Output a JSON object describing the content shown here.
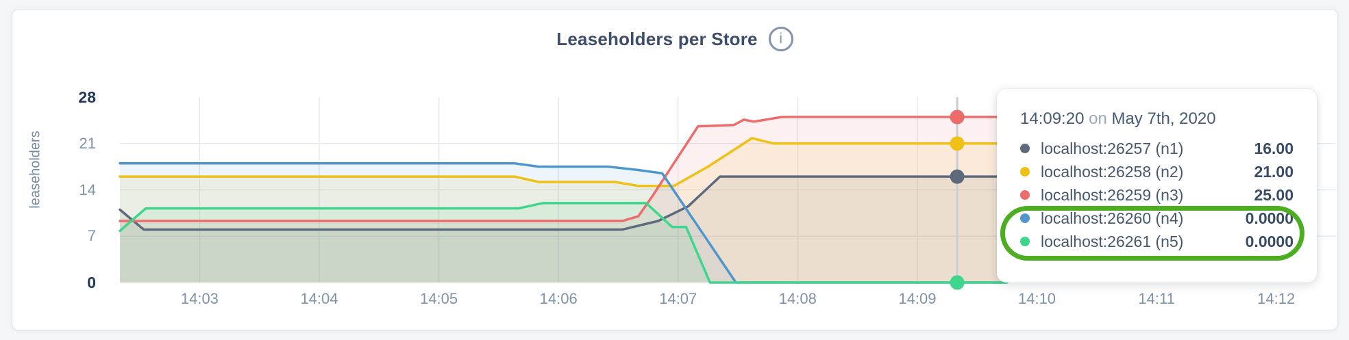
{
  "header": {
    "title": "Leaseholders per Store",
    "info_glyph": "i"
  },
  "tooltip": {
    "time": "14:09:20",
    "connector": "on",
    "date": "May 7th, 2020"
  },
  "annotation": {
    "highlight_color": "#4cae20",
    "wraps_series": [
      "localhost:26260 (n4)",
      "localhost:26261 (n5)"
    ]
  },
  "chart_data": {
    "type": "area",
    "title": "Leaseholders per Store",
    "ylabel": "leaseholders",
    "ylim": [
      0,
      28
    ],
    "x_domain": [
      "14:02:20",
      "14:12:30"
    ],
    "x_ticks": [
      "14:03",
      "14:04",
      "14:05",
      "14:06",
      "14:07",
      "14:08",
      "14:09",
      "14:10",
      "14:11",
      "14:12"
    ],
    "y_ticks": [
      {
        "label": "28",
        "value": 28,
        "emphasis": true
      },
      {
        "label": "21",
        "value": 21,
        "emphasis": false
      },
      {
        "label": "14",
        "value": 14,
        "emphasis": false
      },
      {
        "label": "7",
        "value": 7,
        "emphasis": false
      },
      {
        "label": "0",
        "value": 0,
        "emphasis": true
      }
    ],
    "grid": {
      "on": true,
      "h_values": [
        7,
        14,
        21
      ],
      "color": "#e5e9f0"
    },
    "legend_position": "overlay-tooltip",
    "fill_opacity": 0.1,
    "cursor": {
      "time": "14:09:20",
      "line_color": "#c9ced6"
    },
    "series": [
      {
        "name": "localhost:26257 (n1)",
        "color": "#5c6a7c",
        "cursor_value": 16,
        "cursor_value_label": "16.00",
        "points": [
          [
            "14:02:20",
            11
          ],
          [
            "14:02:32",
            8
          ],
          [
            "14:06:32",
            8
          ],
          [
            "14:06:50",
            9.3
          ],
          [
            "14:07:05",
            11.5
          ],
          [
            "14:07:21",
            16
          ],
          [
            "14:09:45",
            16
          ]
        ]
      },
      {
        "name": "localhost:26258 (n2)",
        "color": "#efc117",
        "cursor_value": 21,
        "cursor_value_label": "21.00",
        "points": [
          [
            "14:02:20",
            16
          ],
          [
            "14:05:38",
            16
          ],
          [
            "14:05:50",
            15.2
          ],
          [
            "14:06:28",
            15.2
          ],
          [
            "14:06:40",
            14.6
          ],
          [
            "14:06:58",
            14.6
          ],
          [
            "14:07:15",
            17.5
          ],
          [
            "14:07:37",
            21.8
          ],
          [
            "14:07:48",
            21
          ],
          [
            "14:09:45",
            21
          ]
        ]
      },
      {
        "name": "localhost:26259 (n3)",
        "color": "#ec6c6c",
        "cursor_value": 25,
        "cursor_value_label": "25.00",
        "points": [
          [
            "14:02:20",
            9.3
          ],
          [
            "14:06:32",
            9.3
          ],
          [
            "14:06:40",
            10
          ],
          [
            "14:06:47",
            13
          ],
          [
            "14:07:00",
            19
          ],
          [
            "14:07:10",
            23.6
          ],
          [
            "14:07:28",
            23.8
          ],
          [
            "14:07:33",
            24.6
          ],
          [
            "14:07:38",
            24.3
          ],
          [
            "14:07:52",
            25
          ],
          [
            "14:09:45",
            25
          ]
        ]
      },
      {
        "name": "localhost:26260 (n4)",
        "color": "#4e96ce",
        "cursor_value": 0,
        "cursor_value_label": "0.0000",
        "points": [
          [
            "14:02:20",
            18
          ],
          [
            "14:05:38",
            18
          ],
          [
            "14:05:50",
            17.5
          ],
          [
            "14:06:25",
            17.5
          ],
          [
            "14:06:40",
            17
          ],
          [
            "14:06:52",
            16.5
          ],
          [
            "14:07:29",
            0
          ],
          [
            "14:09:45",
            0
          ]
        ]
      },
      {
        "name": "localhost:26261 (n5)",
        "color": "#3ed68c",
        "cursor_value": 0,
        "cursor_value_label": "0.0000",
        "points": [
          [
            "14:02:20",
            7.8
          ],
          [
            "14:02:33",
            11.2
          ],
          [
            "14:05:40",
            11.2
          ],
          [
            "14:05:52",
            12
          ],
          [
            "14:06:44",
            12
          ],
          [
            "14:06:57",
            8.4
          ],
          [
            "14:07:04",
            8.4
          ],
          [
            "14:07:16",
            0
          ],
          [
            "14:09:45",
            0
          ]
        ]
      }
    ]
  }
}
